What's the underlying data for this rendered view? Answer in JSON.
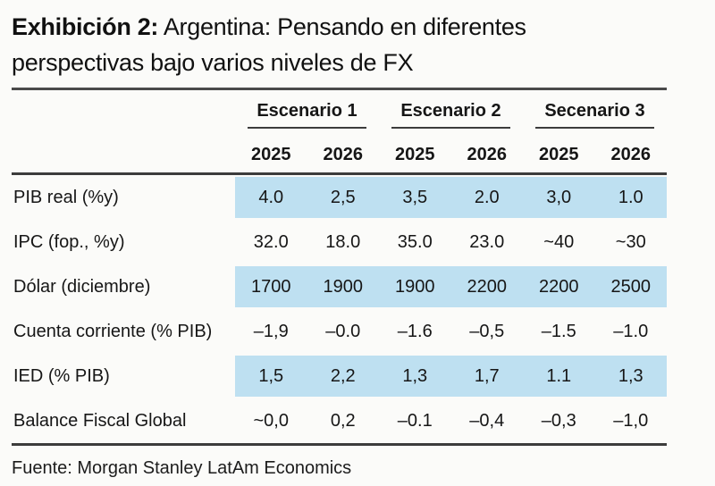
{
  "title": {
    "label": "Exhibición 2:",
    "rest": " Argentina: Pensando en diferentes perspectivas bajo varios niveles de FX"
  },
  "chart_data": {
    "type": "table",
    "title": "Exhibición 2: Argentina: Pensando en diferentes perspectivas bajo varios niveles de FX",
    "column_groups": [
      "Escenario 1",
      "Escenario 2",
      "Secenario 3"
    ],
    "columns": [
      "2025",
      "2026",
      "2025",
      "2026",
      "2025",
      "2026"
    ],
    "rows": [
      {
        "label": "PIB real (%y)",
        "highlighted": true,
        "values": [
          "4.0",
          "2,5",
          "3,5",
          "2.0",
          "3,0",
          "1.0"
        ]
      },
      {
        "label": "IPC (fop., %y)",
        "highlighted": false,
        "values": [
          "32.0",
          "18.0",
          "35.0",
          "23.0",
          "~40",
          "~30"
        ]
      },
      {
        "label": "Dólar (diciembre)",
        "highlighted": true,
        "values": [
          "1700",
          "1900",
          "1900",
          "2200",
          "2200",
          "2500"
        ]
      },
      {
        "label": "Cuenta corriente (% PIB)",
        "highlighted": false,
        "values": [
          "–1,9",
          "–0.0",
          "–1.6",
          "–0,5",
          "–1.5",
          "–1.0"
        ]
      },
      {
        "label": "IED (% PIB)",
        "highlighted": true,
        "values": [
          "1,5",
          "2,2",
          "1,3",
          "1,7",
          "1.1",
          "1,3"
        ]
      },
      {
        "label": "Balance Fiscal Global",
        "highlighted": false,
        "values": [
          "~0,0",
          "0,2",
          "–0.1",
          "–0,4",
          "–0,3",
          "–1,0"
        ]
      }
    ],
    "highlight_color": "#BEE0F1",
    "source": "Fuente: Morgan Stanley LatAm Economics"
  },
  "footer": {
    "source": "Fuente: Morgan Stanley LatAm Economics"
  }
}
